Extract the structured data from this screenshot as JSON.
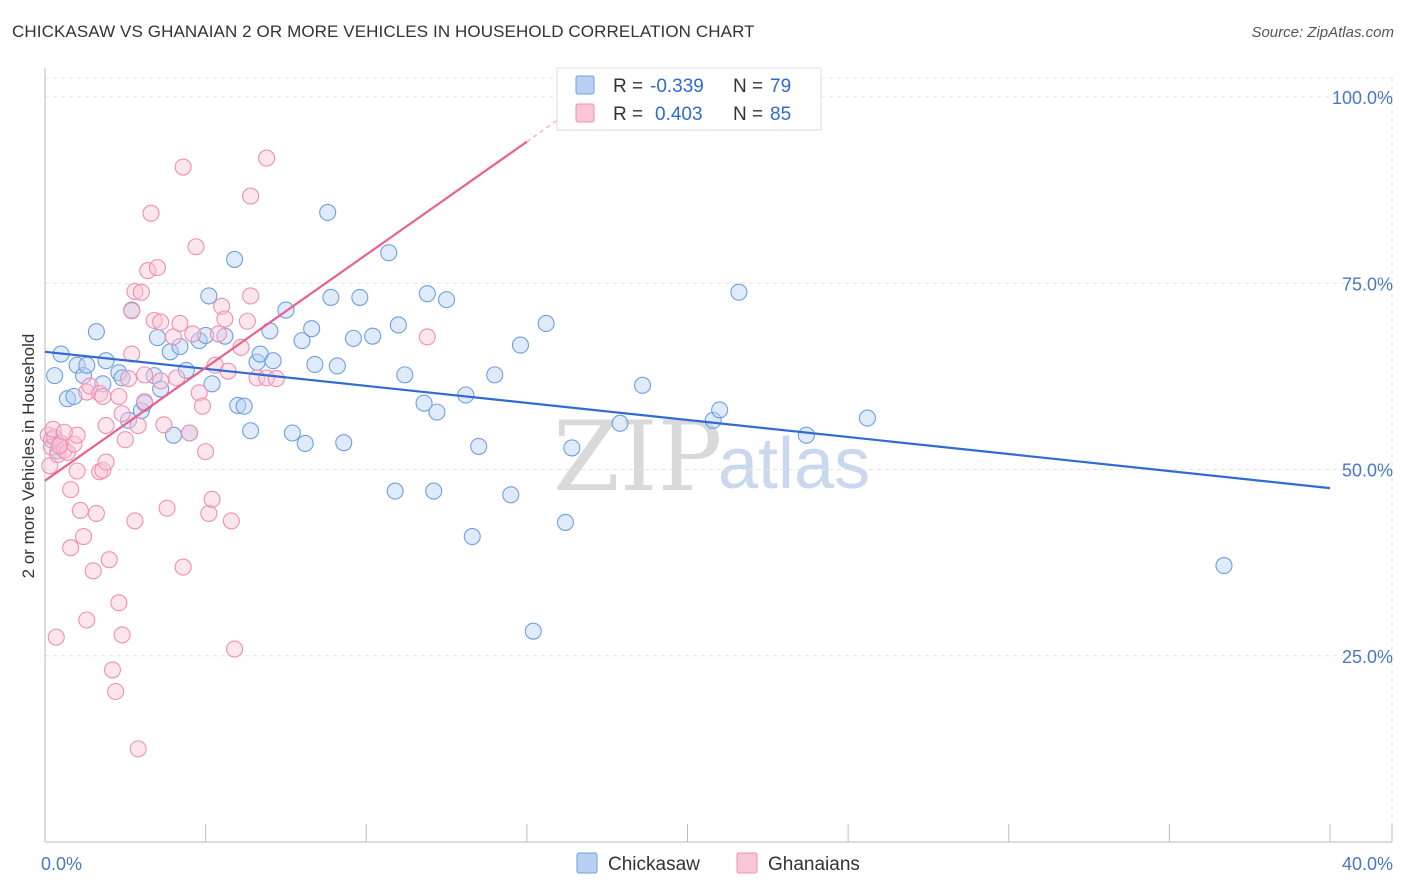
{
  "title": "CHICKASAW VS GHANAIAN 2 OR MORE VEHICLES IN HOUSEHOLD CORRELATION CHART",
  "source": "Source: ZipAtlas.com",
  "watermark": {
    "zip": "ZIP",
    "atlas": "atlas"
  },
  "legend": {
    "rows": [
      {
        "r_label": "R =",
        "r_value": "-0.339",
        "n_label": "N =",
        "n_value": "79",
        "color": "#6f9fe0"
      },
      {
        "r_label": "R =",
        "r_value": "0.403",
        "n_label": "N =",
        "n_value": "85",
        "color": "#f08fb0"
      }
    ]
  },
  "chart_data": {
    "type": "scatter",
    "title": "CHICKASAW VS GHANAIAN 2 OR MORE VEHICLES IN HOUSEHOLD CORRELATION CHART",
    "xlabel": "",
    "ylabel": "2 or more Vehicles in Household",
    "xlim": [
      0,
      40
    ],
    "ylim": [
      0,
      100
    ],
    "x_tick_labels": [
      {
        "value": 0,
        "label": "0.0%"
      },
      {
        "value": 40,
        "label": "40.0%"
      }
    ],
    "y_tick_labels": [
      {
        "value": 100,
        "label": "100.0%"
      },
      {
        "value": 75,
        "label": "75.0%"
      },
      {
        "value": 50,
        "label": "50.0%"
      },
      {
        "value": 25,
        "label": "25.0%"
      }
    ],
    "grid": true,
    "series": [
      {
        "name": "Chickasaw",
        "color": "#6f9fe0",
        "fill": "#b9d0f3",
        "trend": {
          "x": [
            0,
            40
          ],
          "y": [
            65.8,
            47.5
          ]
        },
        "points": [
          [
            0.3,
            62.6
          ],
          [
            0.5,
            65.5
          ],
          [
            0.7,
            59.5
          ],
          [
            0.9,
            59.8
          ],
          [
            1.0,
            64.0
          ],
          [
            1.2,
            62.6
          ],
          [
            1.3,
            64.0
          ],
          [
            1.6,
            68.5
          ],
          [
            1.8,
            61.5
          ],
          [
            1.9,
            64.6
          ],
          [
            2.3,
            63.0
          ],
          [
            2.4,
            62.3
          ],
          [
            2.6,
            56.6
          ],
          [
            2.7,
            71.4
          ],
          [
            3.0,
            57.9
          ],
          [
            3.1,
            58.9
          ],
          [
            3.4,
            62.6
          ],
          [
            3.5,
            67.7
          ],
          [
            3.6,
            60.8
          ],
          [
            3.9,
            65.8
          ],
          [
            4.0,
            54.6
          ],
          [
            4.2,
            66.5
          ],
          [
            4.4,
            63.3
          ],
          [
            4.5,
            54.9
          ],
          [
            4.8,
            67.3
          ],
          [
            5.0,
            68.0
          ],
          [
            5.1,
            73.3
          ],
          [
            5.2,
            61.5
          ],
          [
            5.6,
            67.9
          ],
          [
            5.9,
            78.2
          ],
          [
            6.0,
            58.6
          ],
          [
            6.2,
            58.5
          ],
          [
            6.4,
            55.2
          ],
          [
            6.6,
            64.4
          ],
          [
            6.7,
            65.5
          ],
          [
            7.0,
            68.6
          ],
          [
            7.1,
            64.6
          ],
          [
            7.5,
            71.4
          ],
          [
            7.7,
            54.9
          ],
          [
            8.0,
            67.3
          ],
          [
            8.1,
            53.5
          ],
          [
            8.3,
            68.9
          ],
          [
            8.4,
            64.1
          ],
          [
            8.8,
            84.5
          ],
          [
            8.9,
            73.1
          ],
          [
            9.1,
            63.9
          ],
          [
            9.3,
            53.6
          ],
          [
            9.6,
            67.6
          ],
          [
            9.8,
            73.1
          ],
          [
            10.2,
            67.9
          ],
          [
            10.7,
            79.1
          ],
          [
            10.9,
            47.1
          ],
          [
            11.0,
            69.4
          ],
          [
            11.2,
            62.7
          ],
          [
            11.8,
            58.9
          ],
          [
            11.9,
            73.6
          ],
          [
            12.1,
            47.1
          ],
          [
            12.2,
            57.7
          ],
          [
            12.5,
            72.8
          ],
          [
            13.1,
            60.0
          ],
          [
            13.3,
            41.0
          ],
          [
            13.5,
            53.1
          ],
          [
            14.0,
            62.7
          ],
          [
            14.5,
            46.6
          ],
          [
            14.8,
            66.7
          ],
          [
            15.2,
            28.3
          ],
          [
            15.6,
            69.6
          ],
          [
            16.2,
            42.9
          ],
          [
            16.4,
            52.9
          ],
          [
            17.9,
            56.2
          ],
          [
            18.6,
            61.3
          ],
          [
            20.8,
            56.6
          ],
          [
            21.0,
            58.0
          ],
          [
            21.6,
            73.8
          ],
          [
            23.7,
            54.6
          ],
          [
            25.6,
            56.9
          ],
          [
            36.7,
            37.1
          ],
          [
            0.2,
            54.0
          ],
          [
            0.4,
            52.5
          ]
        ]
      },
      {
        "name": "Ghanaians",
        "color": "#f08fb0",
        "fill": "#f8c6d6",
        "trend": {
          "x": [
            0,
            15.0
          ],
          "y": [
            48.5,
            94.0
          ]
        },
        "points": [
          [
            0.1,
            54.6
          ],
          [
            0.15,
            50.5
          ],
          [
            0.2,
            53.0
          ],
          [
            0.3,
            54.3
          ],
          [
            0.35,
            27.5
          ],
          [
            0.4,
            52.0
          ],
          [
            0.5,
            53.5
          ],
          [
            0.6,
            52.6
          ],
          [
            0.7,
            52.3
          ],
          [
            0.8,
            39.5
          ],
          [
            0.8,
            47.3
          ],
          [
            0.9,
            53.4
          ],
          [
            1.0,
            49.8
          ],
          [
            1.0,
            54.6
          ],
          [
            1.1,
            44.5
          ],
          [
            1.2,
            41.0
          ],
          [
            1.3,
            60.4
          ],
          [
            1.3,
            29.8
          ],
          [
            1.4,
            61.2
          ],
          [
            1.5,
            36.4
          ],
          [
            1.6,
            44.1
          ],
          [
            1.7,
            60.2
          ],
          [
            1.7,
            49.7
          ],
          [
            1.8,
            59.8
          ],
          [
            1.8,
            49.9
          ],
          [
            1.9,
            55.9
          ],
          [
            1.9,
            51.0
          ],
          [
            2.0,
            37.9
          ],
          [
            2.1,
            23.1
          ],
          [
            2.2,
            20.2
          ],
          [
            2.3,
            59.8
          ],
          [
            2.3,
            32.1
          ],
          [
            2.4,
            57.5
          ],
          [
            2.4,
            27.8
          ],
          [
            2.5,
            54.0
          ],
          [
            2.6,
            62.2
          ],
          [
            2.7,
            65.5
          ],
          [
            2.7,
            71.3
          ],
          [
            2.8,
            73.9
          ],
          [
            2.8,
            43.1
          ],
          [
            2.9,
            55.9
          ],
          [
            2.9,
            12.5
          ],
          [
            3.0,
            73.8
          ],
          [
            3.1,
            59.1
          ],
          [
            3.1,
            62.7
          ],
          [
            3.2,
            76.7
          ],
          [
            3.3,
            84.4
          ],
          [
            3.4,
            70.0
          ],
          [
            3.5,
            77.1
          ],
          [
            3.6,
            69.8
          ],
          [
            3.6,
            61.9
          ],
          [
            3.7,
            56.0
          ],
          [
            3.8,
            44.8
          ],
          [
            4.0,
            67.8
          ],
          [
            4.1,
            62.3
          ],
          [
            4.2,
            69.6
          ],
          [
            4.3,
            90.6
          ],
          [
            4.3,
            36.9
          ],
          [
            4.5,
            54.9
          ],
          [
            4.6,
            68.2
          ],
          [
            4.7,
            79.9
          ],
          [
            4.8,
            60.3
          ],
          [
            4.9,
            58.5
          ],
          [
            5.0,
            52.4
          ],
          [
            5.1,
            44.1
          ],
          [
            5.2,
            46.0
          ],
          [
            5.3,
            64.0
          ],
          [
            5.4,
            68.2
          ],
          [
            5.5,
            71.9
          ],
          [
            5.6,
            70.2
          ],
          [
            5.7,
            63.2
          ],
          [
            5.8,
            43.1
          ],
          [
            5.9,
            25.9
          ],
          [
            6.1,
            66.4
          ],
          [
            6.3,
            69.9
          ],
          [
            6.4,
            86.7
          ],
          [
            6.4,
            73.3
          ],
          [
            6.6,
            62.3
          ],
          [
            6.9,
            91.8
          ],
          [
            6.9,
            62.3
          ],
          [
            7.2,
            62.2
          ],
          [
            11.9,
            67.8
          ],
          [
            0.25,
            55.4
          ],
          [
            0.45,
            53.2
          ],
          [
            0.6,
            55.0
          ]
        ]
      }
    ]
  },
  "bottom_legend": [
    {
      "label": "Chickasaw",
      "color": "#6f9fe0",
      "fill": "#b9d0f3"
    },
    {
      "label": "Ghanaians",
      "color": "#f08fb0",
      "fill": "#f8c6d6"
    }
  ]
}
